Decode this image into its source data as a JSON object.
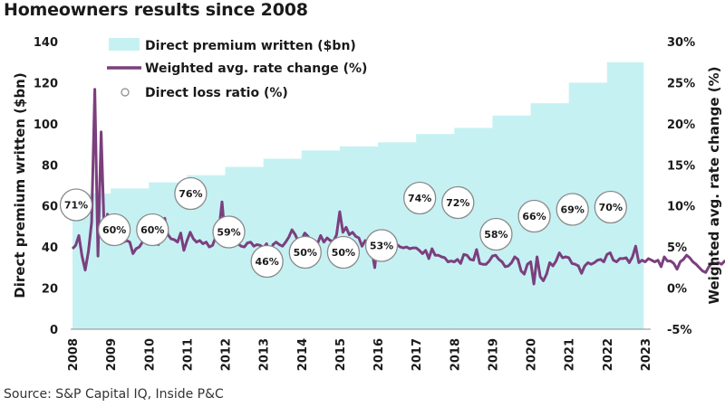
{
  "title": "Homeowners results since 2008",
  "source": "Source: S&P Capital IQ, Inside P&C",
  "chart_data": {
    "type": "combo",
    "title": "Homeowners results since 2008",
    "x_ticks": [
      "2008",
      "2009",
      "2010",
      "2011",
      "2012",
      "2013",
      "2014",
      "2015",
      "2016",
      "2017",
      "2018",
      "2019",
      "2020",
      "2021",
      "2022",
      "2023"
    ],
    "ylabel_left": "Direct premium written ($bn)",
    "ylabel_right": "Weighted avg. rate change (%)",
    "ylim_left": [
      0,
      140
    ],
    "yticks_left": [
      "0",
      "20",
      "40",
      "60",
      "80",
      "100",
      "120",
      "140"
    ],
    "ylim_right": [
      -5,
      30
    ],
    "yticks_right": [
      "-5%",
      "0%",
      "5%",
      "10%",
      "15%",
      "20%",
      "25%",
      "30%"
    ],
    "legend": [
      {
        "label": "Direct premium written ($bn)",
        "type": "area",
        "color": "#c6f1f3"
      },
      {
        "label": "Weighted avg. rate change (%)",
        "type": "line",
        "color": "#7b3f7e"
      },
      {
        "label": "Direct loss ratio (%)",
        "type": "circle",
        "color": "#888888"
      }
    ],
    "legend_position": "top-left",
    "colors": {
      "area": "#c6f1f3",
      "line": "#7b3f7e",
      "bubble_stroke": "#8a8a8a"
    },
    "series": [
      {
        "name": "Direct premium written ($bn)",
        "type": "area-step",
        "axis": "left",
        "x": [
          2008,
          2009,
          2010,
          2011,
          2012,
          2013,
          2014,
          2015,
          2016,
          2017,
          2018,
          2019,
          2020,
          2021,
          2022
        ],
        "values": [
          66,
          68.5,
          71.5,
          75,
          79,
          83,
          87,
          89,
          91,
          95,
          98,
          104,
          110,
          120,
          130
        ]
      },
      {
        "name": "Direct loss ratio (%)",
        "type": "bubble-labels",
        "axis": "left",
        "x": [
          2008,
          2009,
          2010,
          2011,
          2012,
          2013,
          2014,
          2015,
          2016,
          2017,
          2018,
          2019,
          2020,
          2021,
          2022
        ],
        "values": [
          71,
          60,
          60,
          76,
          59,
          46,
          50,
          50,
          53,
          74,
          72,
          58,
          66,
          69,
          70
        ],
        "labels": [
          "71%",
          "60%",
          "60%",
          "76%",
          "59%",
          "46%",
          "50%",
          "50%",
          "53%",
          "74%",
          "72%",
          "58%",
          "66%",
          "69%",
          "70%"
        ]
      },
      {
        "name": "Weighted avg. rate change (%)",
        "type": "line",
        "axis": "right",
        "x_start": 2008.0,
        "x_step": 0.0833333,
        "values": [
          4.8,
          5.2,
          6.4,
          3.9,
          2.2,
          4.5,
          8.0,
          24.2,
          3.9,
          19.0,
          6.5,
          9.0,
          5.5,
          5.8,
          5.5,
          5.4,
          5.6,
          5.8,
          5.6,
          4.2,
          4.8,
          5.0,
          5.6,
          6.3,
          5.7,
          5.8,
          7.0,
          5.3,
          6.2,
          8.5,
          6.5,
          6.0,
          5.9,
          5.6,
          6.7,
          4.6,
          5.8,
          6.8,
          6.0,
          5.6,
          5.8,
          5.4,
          5.6,
          5.0,
          5.2,
          6.2,
          7.0,
          10.5,
          6.0,
          5.3,
          5.8,
          5.2,
          5.4,
          5.1,
          5.0,
          5.5,
          5.6,
          5.1,
          5.3,
          5.2,
          4.9,
          5.4,
          3.3,
          5.3,
          5.6,
          5.3,
          5.1,
          5.6,
          6.2,
          7.1,
          6.5,
          5.6,
          5.9,
          6.7,
          6.3,
          5.8,
          5.3,
          5.4,
          6.4,
          5.6,
          6.1,
          5.8,
          5.7,
          6.5,
          9.3,
          6.8,
          7.4,
          6.5,
          6.8,
          6.3,
          6.1,
          5.1,
          5.8,
          5.6,
          4.8,
          2.5,
          6.0,
          4.9,
          4.5,
          4.2,
          5.0,
          5.3,
          5.3,
          5.0,
          4.9,
          5.0,
          4.8,
          4.9,
          4.9,
          4.6,
          4.2,
          4.6,
          3.6,
          4.8,
          4.0,
          4.0,
          3.8,
          3.7,
          3.2,
          3.3,
          3.2,
          3.5,
          3.0,
          4.1,
          4.0,
          3.5,
          3.4,
          4.7,
          3.0,
          2.9,
          2.9,
          3.3,
          3.9,
          4.0,
          3.5,
          3.2,
          2.6,
          2.7,
          3.1,
          3.8,
          3.5,
          2.1,
          1.7,
          2.9,
          3.2,
          0.5,
          3.8,
          1.4,
          0.9,
          1.7,
          3.1,
          2.7,
          3.3,
          4.3,
          3.7,
          3.8,
          3.7,
          3.0,
          2.9,
          2.7,
          1.8,
          2.7,
          3.1,
          2.9,
          3.1,
          3.4,
          3.5,
          3.2,
          4.1,
          4.3,
          3.4,
          3.2,
          3.6,
          3.6,
          3.7,
          3.1,
          3.8,
          5.1,
          3.1,
          3.4,
          3.2,
          3.6,
          3.4,
          3.2,
          3.4,
          2.6,
          3.8,
          3.3,
          3.3,
          3.0,
          2.3,
          3.2,
          3.5,
          4.0,
          3.7,
          3.2,
          2.9,
          2.5,
          2.1,
          1.9,
          2.6,
          3.1,
          3.0,
          3.1,
          2.9,
          3.3,
          3.1,
          2.8,
          3.3,
          3.5,
          2.1,
          3.4,
          2.6,
          3.1,
          3.2,
          3.1,
          3.4,
          3.7,
          4.0,
          4.2,
          4.7,
          4.4,
          5.4,
          4.0,
          4.2,
          3.9,
          4.1,
          4.7,
          3.2,
          3.7,
          3.8,
          4.2,
          4.4,
          4.0,
          4.6,
          4.8,
          4.5,
          4.0,
          4.1,
          4.4,
          4.3,
          4.3,
          5.8,
          4.3,
          3.8,
          5.6,
          4.1,
          6.2,
          4.8,
          6.4,
          7.2,
          7.8,
          7.9,
          7.8,
          8.4,
          6.5,
          9.2,
          8.3,
          8.2
        ]
      }
    ]
  }
}
